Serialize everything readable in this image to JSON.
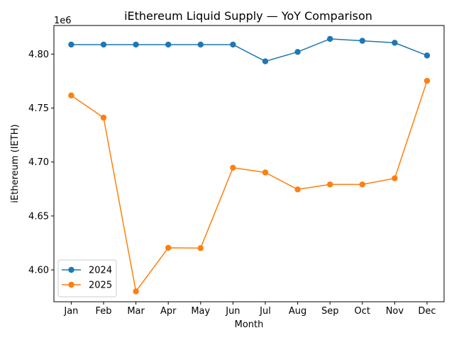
{
  "chart_data": {
    "type": "line",
    "title": "iEthereum Liquid Supply — YoY Comparison",
    "xlabel": "Month",
    "ylabel": "iEthereum (IETH)",
    "offset_text": "1e6",
    "categories": [
      "Jan",
      "Feb",
      "Mar",
      "Apr",
      "May",
      "Jun",
      "Jul",
      "Aug",
      "Sep",
      "Oct",
      "Nov",
      "Dec"
    ],
    "yticks": [
      4.6,
      4.65,
      4.7,
      4.75,
      4.8
    ],
    "ytick_labels": [
      "4.60",
      "4.65",
      "4.70",
      "4.75",
      "4.80"
    ],
    "ylim": [
      4.5705,
      4.8265
    ],
    "grid": false,
    "legend_position": "lower-left",
    "series": [
      {
        "name": "2024",
        "color": "#1f77b4",
        "values": [
          4.8088,
          4.8088,
          4.8088,
          4.8088,
          4.8088,
          4.8088,
          4.7933,
          4.802,
          4.8141,
          4.8123,
          4.8105,
          4.7987
        ]
      },
      {
        "name": "2025",
        "color": "#ff7f0e",
        "values": [
          4.7617,
          4.7411,
          4.5801,
          4.6205,
          4.6202,
          4.6947,
          4.6903,
          4.6746,
          4.6792,
          4.6792,
          4.6849,
          4.7752
        ]
      }
    ]
  }
}
